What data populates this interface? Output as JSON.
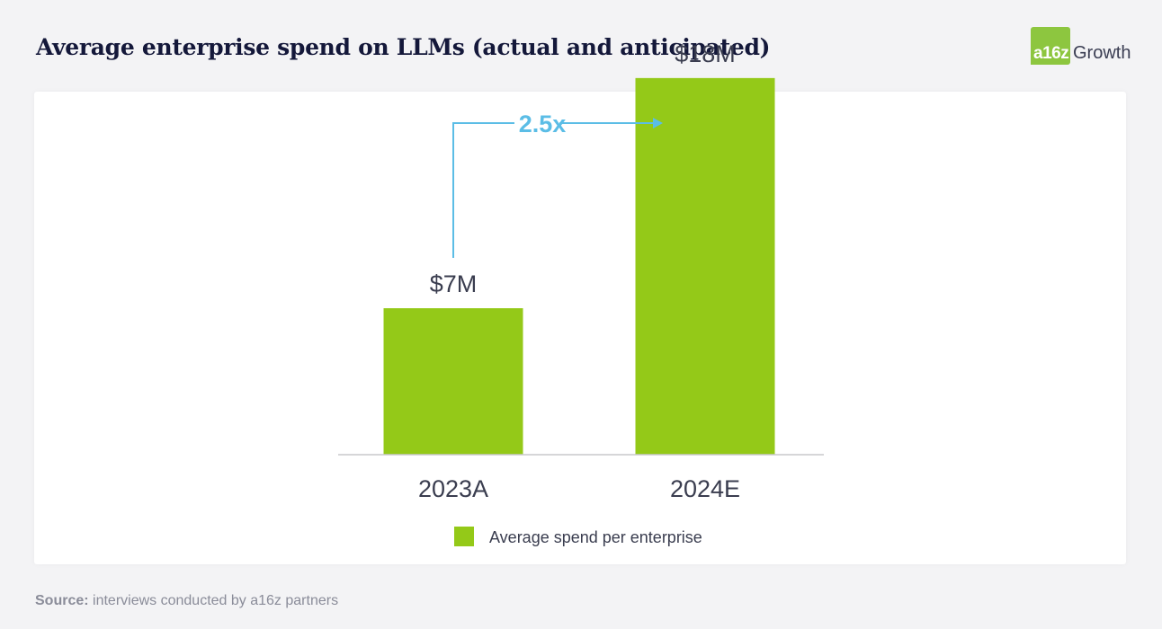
{
  "header": {
    "title": "Average enterprise spend on LLMs (actual and anticipated)",
    "logo_mark": "a16z",
    "logo_text": "Growth"
  },
  "footer": {
    "source_label": "Source:",
    "source_text": " interviews conducted by a16z partners"
  },
  "colors": {
    "bar": "#94c918",
    "arrow": "#5bbde6",
    "text": "#3a3d4f",
    "axis": "#c8c8cc"
  },
  "chart_data": {
    "type": "bar",
    "title": "Average enterprise spend on LLMs (actual and anticipated)",
    "categories": [
      "2023A",
      "2024E"
    ],
    "series": [
      {
        "name": "Average spend per enterprise",
        "values": [
          7,
          18
        ],
        "labels": [
          "$7M",
          "$18M"
        ]
      }
    ],
    "ylim": [
      0,
      21
    ],
    "grid": false,
    "legend": "bottom-center",
    "annotation": {
      "text": "2.5x",
      "from": "2023A",
      "to": "2024E"
    }
  }
}
